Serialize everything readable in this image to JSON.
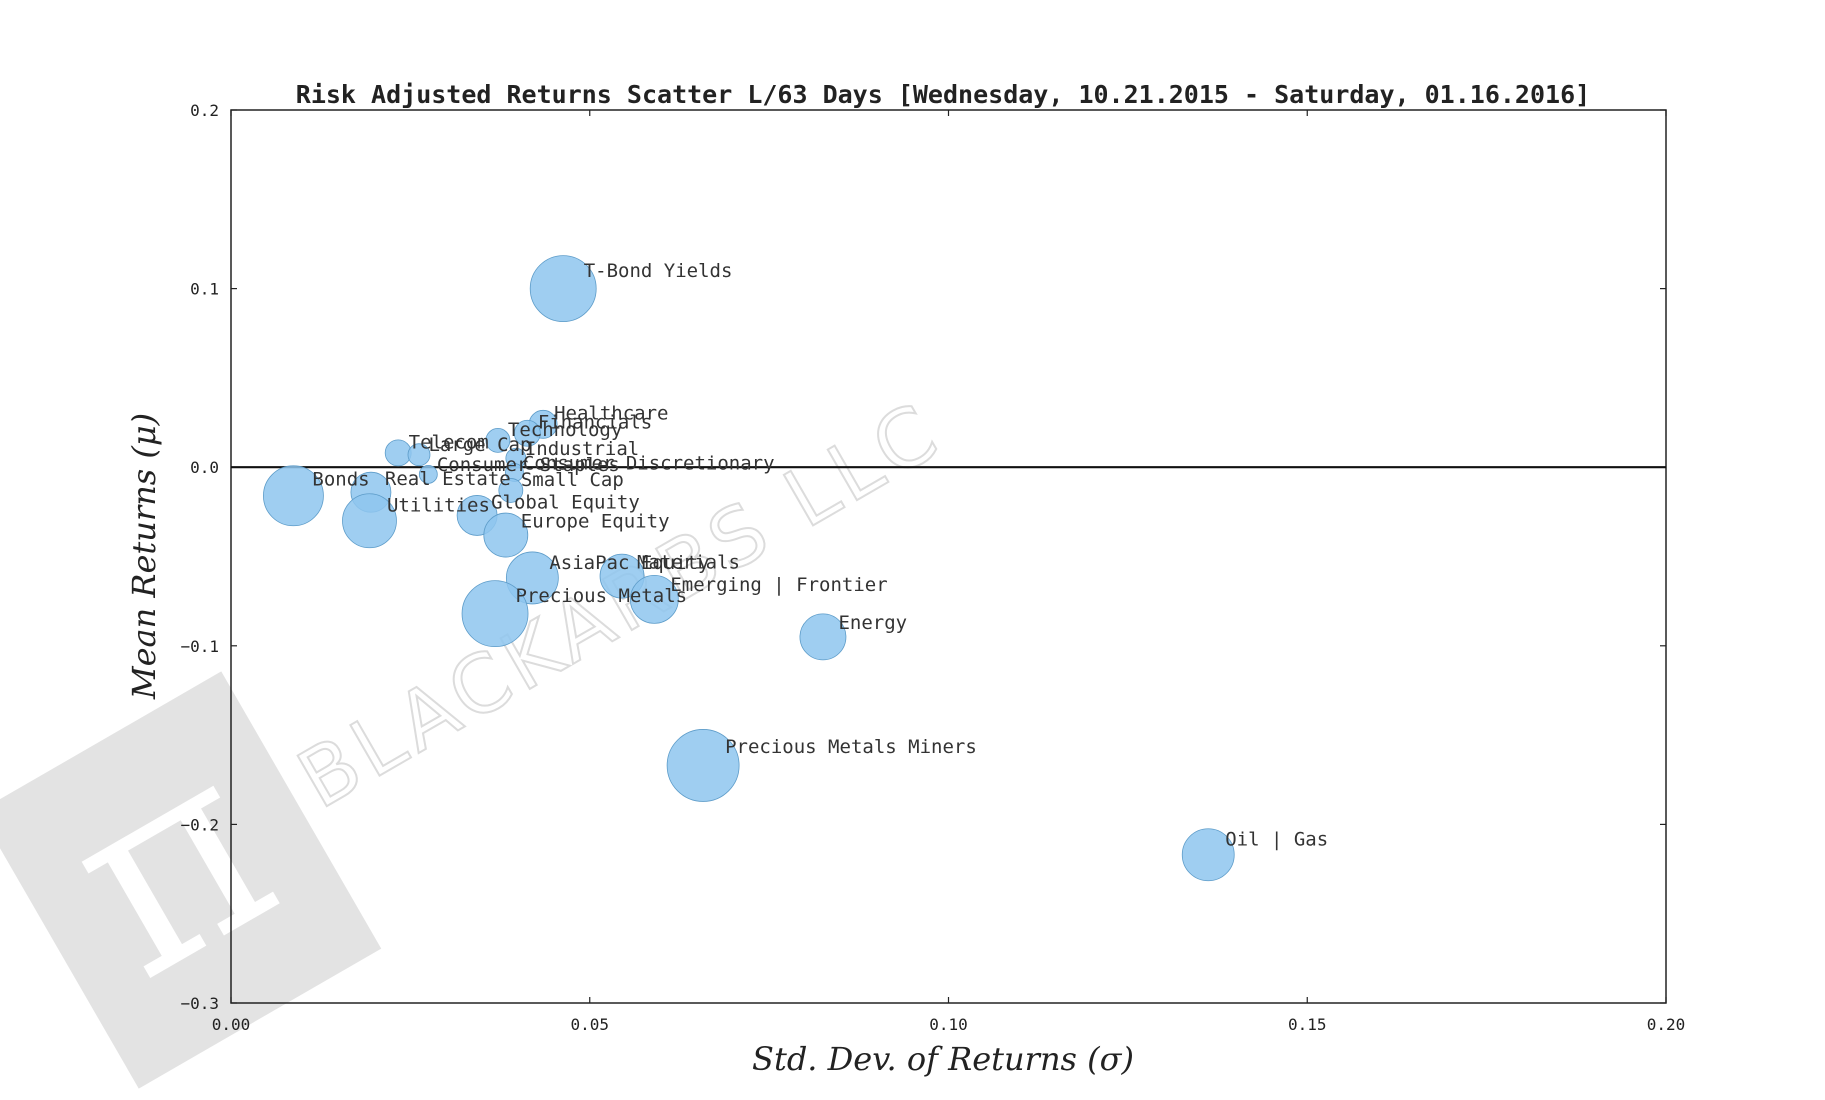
{
  "chart_data": {
    "type": "scatter",
    "title": "Risk Adjusted Returns Scatter L/63 Days [Wednesday, 10.21.2015 - Saturday, 01.16.2016]",
    "xlabel": "Std.  Dev.  of  Returns     (σ)",
    "ylabel": "Mean  Returns     (μ)",
    "xlim": [
      0.0,
      0.2
    ],
    "ylim": [
      -0.3,
      0.2
    ],
    "xticks": [
      {
        "value": 0.0,
        "label": "0.00"
      },
      {
        "value": 0.05,
        "label": "0.05"
      },
      {
        "value": 0.1,
        "label": "0.10"
      },
      {
        "value": 0.15,
        "label": "0.15"
      },
      {
        "value": 0.2,
        "label": "0.20"
      }
    ],
    "yticks": [
      {
        "value": 0.2,
        "label": "0.2"
      },
      {
        "value": 0.1,
        "label": "0.1"
      },
      {
        "value": 0.0,
        "label": "0.0"
      },
      {
        "value": -0.1,
        "label": "−0.1"
      },
      {
        "value": -0.2,
        "label": "−0.2"
      },
      {
        "value": -0.3,
        "label": "−0.3"
      }
    ],
    "zero_line": 0.0,
    "grid": false,
    "marker_color": "#8ec5ee",
    "points": [
      {
        "label": "T-Bond Yields",
        "x": 0.0463,
        "y": 0.1,
        "size": 33
      },
      {
        "label": "Healthcare",
        "x": 0.0435,
        "y": 0.024,
        "size": 14
      },
      {
        "label": "Financials",
        "x": 0.0413,
        "y": 0.019,
        "size": 13
      },
      {
        "label": "Technology",
        "x": 0.0372,
        "y": 0.015,
        "size": 12
      },
      {
        "label": "Telecom",
        "x": 0.0233,
        "y": 0.008,
        "size": 13
      },
      {
        "label": "Large Cap",
        "x": 0.0262,
        "y": 0.007,
        "size": 11
      },
      {
        "label": "Industrial",
        "x": 0.0397,
        "y": 0.005,
        "size": 10
      },
      {
        "label": "Consumer Discretionary",
        "x": 0.0395,
        "y": -0.003,
        "size": 9
      },
      {
        "label": "Consumer Staples",
        "x": 0.0275,
        "y": -0.004,
        "size": 9
      },
      {
        "label": "Small Cap",
        "x": 0.039,
        "y": -0.013,
        "size": 12
      },
      {
        "label": "Bonds",
        "x": 0.0087,
        "y": -0.016,
        "size": 30
      },
      {
        "label": "Real Estate",
        "x": 0.0195,
        "y": -0.014,
        "size": 20
      },
      {
        "label": "Utilities",
        "x": 0.0193,
        "y": -0.03,
        "size": 27
      },
      {
        "label": "Global Equity",
        "x": 0.0343,
        "y": -0.027,
        "size": 20
      },
      {
        "label": "Europe Equity",
        "x": 0.0383,
        "y": -0.038,
        "size": 22
      },
      {
        "label": "AsiaPac Equity",
        "x": 0.042,
        "y": -0.062,
        "size": 26
      },
      {
        "label": "Materials",
        "x": 0.0545,
        "y": -0.061,
        "size": 22
      },
      {
        "label": "Emerging | Frontier",
        "x": 0.059,
        "y": -0.074,
        "size": 24
      },
      {
        "label": "Precious Metals",
        "x": 0.0368,
        "y": -0.082,
        "size": 33
      },
      {
        "label": "Energy",
        "x": 0.0825,
        "y": -0.095,
        "size": 23
      },
      {
        "label": "Precious Metals Miners",
        "x": 0.0658,
        "y": -0.167,
        "size": 36
      },
      {
        "label": "Oil | Gas",
        "x": 0.1362,
        "y": -0.217,
        "size": 26
      }
    ]
  },
  "watermark": {
    "text": "BLACKARBS LLC",
    "logo_glyph": "π",
    "color": "#e3e3e3"
  }
}
